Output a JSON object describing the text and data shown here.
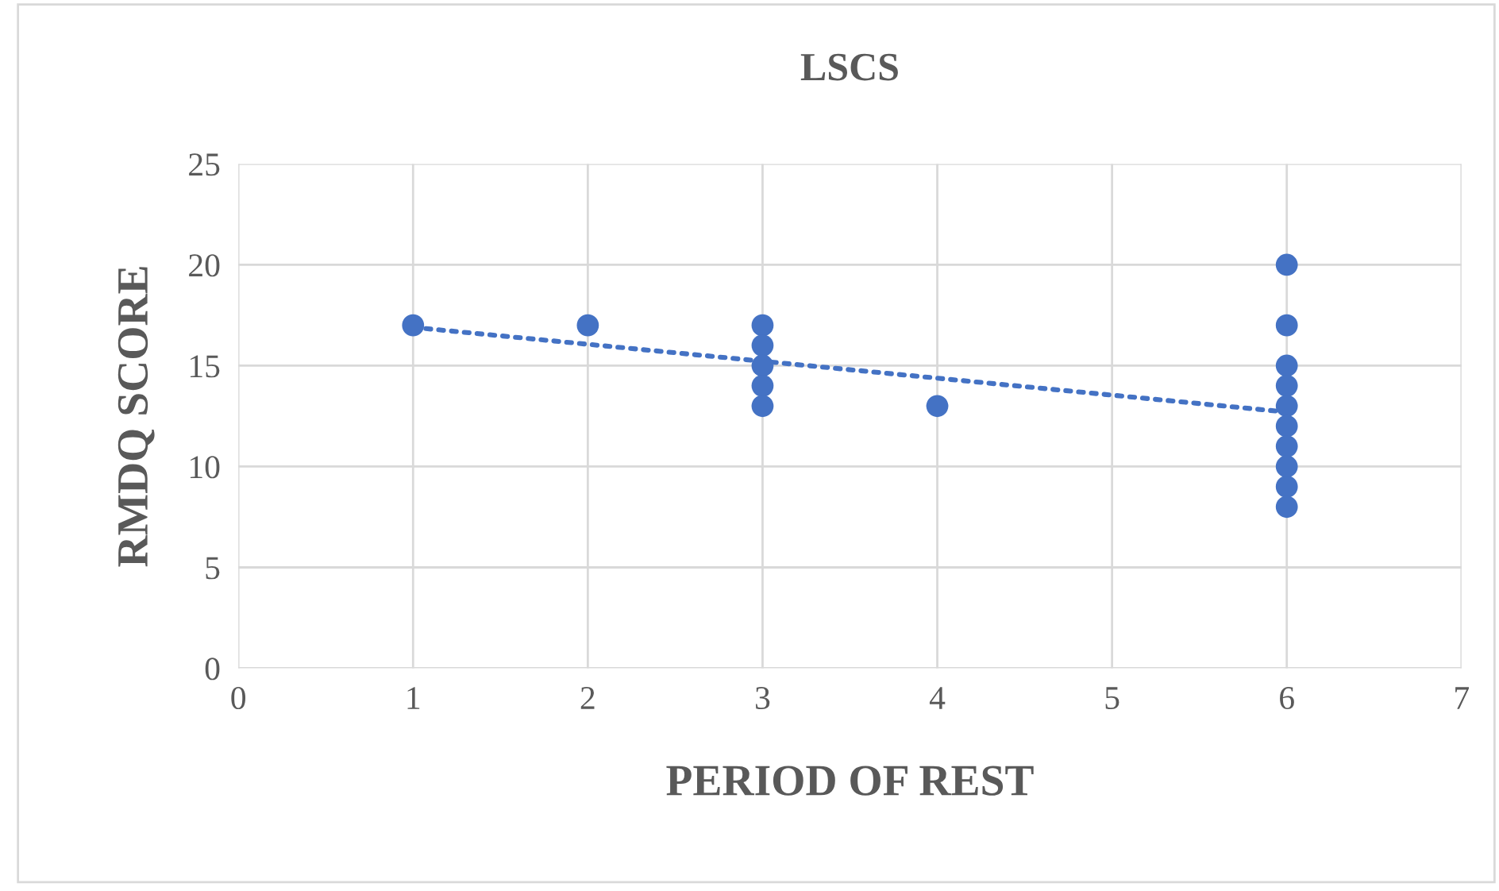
{
  "chart_data": {
    "type": "scatter",
    "title": "LSCS",
    "xlabel": "PERIOD OF REST",
    "ylabel": "RMDQ SCORE",
    "xlim": [
      0,
      7
    ],
    "xticks": [
      0,
      1,
      2,
      3,
      4,
      5,
      6,
      7
    ],
    "ylim": [
      0,
      25
    ],
    "yticks": [
      0,
      5,
      10,
      15,
      20,
      25
    ],
    "grid": true,
    "series": [
      {
        "marker": "circle",
        "color": "#4472c4",
        "x": [
          1,
          2,
          3,
          3,
          3,
          3,
          3,
          4,
          6,
          6,
          6,
          6,
          6,
          6,
          6,
          6,
          6,
          6
        ],
        "values": [
          17,
          17,
          17,
          16,
          15,
          14,
          13,
          13,
          20,
          17,
          15,
          14,
          13,
          12,
          11,
          10,
          9,
          8
        ]
      },
      {
        "type": "line",
        "color": "#4472c4",
        "line_style": "dotted",
        "marker": "none",
        "x": [
          1,
          6
        ],
        "values": [
          16.9,
          12.7
        ]
      }
    ]
  }
}
